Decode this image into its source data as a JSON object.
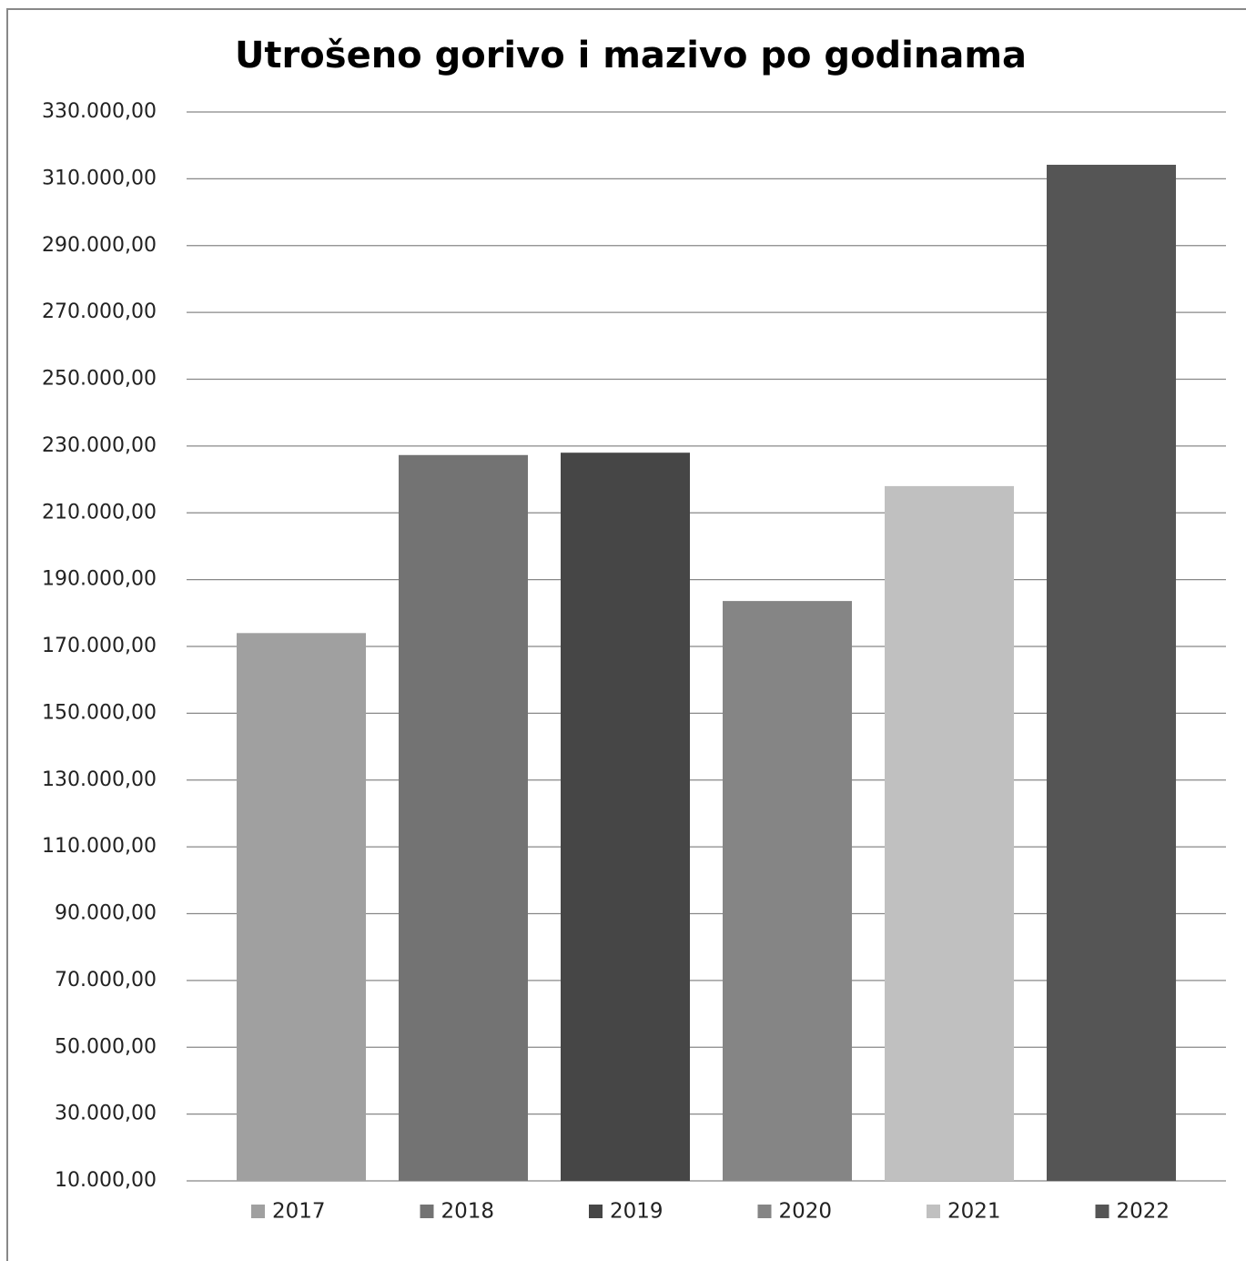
{
  "chart_data": {
    "type": "bar",
    "title": "Utrošeno gorivo i mazivo po godinama",
    "categories": [
      null
    ],
    "series": [
      {
        "name": "2017",
        "color": "#a0a0a0",
        "values": [
          174000
        ]
      },
      {
        "name": "2018",
        "color": "#737373",
        "values": [
          227300
        ]
      },
      {
        "name": "2019",
        "color": "#464646",
        "values": [
          228000
        ]
      },
      {
        "name": "2020",
        "color": "#858585",
        "values": [
          183600
        ]
      },
      {
        "name": "2021",
        "color": "#c0c0c0",
        "values": [
          218000
        ]
      },
      {
        "name": "2022",
        "color": "#555555",
        "values": [
          314200
        ]
      }
    ],
    "ylim": [
      10000,
      330000
    ],
    "yticks": [
      {
        "value": 10000,
        "label": "10.000,00"
      },
      {
        "value": 30000,
        "label": "30.000,00"
      },
      {
        "value": 50000,
        "label": "50.000,00"
      },
      {
        "value": 70000,
        "label": "70.000,00"
      },
      {
        "value": 90000,
        "label": "90.000,00"
      },
      {
        "value": 110000,
        "label": "110.000,00"
      },
      {
        "value": 130000,
        "label": "130.000,00"
      },
      {
        "value": 150000,
        "label": "150.000,00"
      },
      {
        "value": 170000,
        "label": "170.000,00"
      },
      {
        "value": 190000,
        "label": "190.000,00"
      },
      {
        "value": 210000,
        "label": "210.000,00"
      },
      {
        "value": 230000,
        "label": "230.000,00"
      },
      {
        "value": 250000,
        "label": "250.000,00"
      },
      {
        "value": 270000,
        "label": "270.000,00"
      },
      {
        "value": 290000,
        "label": "290.000,00"
      },
      {
        "value": 310000,
        "label": "310.000,00"
      },
      {
        "value": 330000,
        "label": "330.000,00"
      }
    ],
    "grid": true,
    "legend": "bottom"
  }
}
